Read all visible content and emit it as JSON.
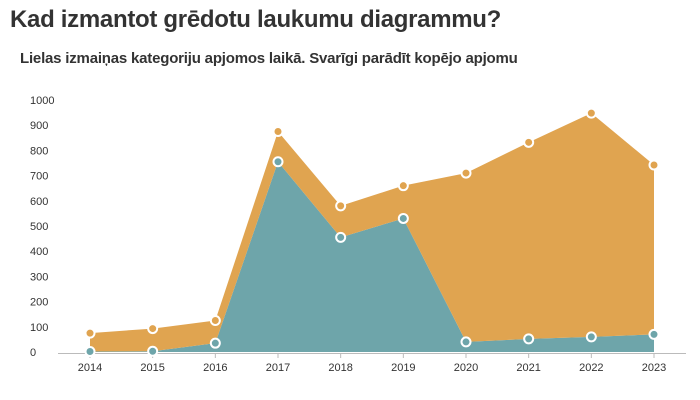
{
  "title": "Kad izmantot grēdotu laukumu diagrammu?",
  "subtitle": "Lielas izmaiņas kategoriju apjomos laikā. Svarīgi parādīt kopējo apjomu",
  "chart_data": {
    "type": "area",
    "stacked": true,
    "x": [
      2014,
      2015,
      2016,
      2017,
      2018,
      2019,
      2020,
      2021,
      2022,
      2023
    ],
    "series": [
      {
        "values": [
          2,
          3,
          35,
          755,
          455,
          530,
          40,
          52,
          60,
          70
        ],
        "color": "#6ea5aa"
      },
      {
        "values": [
          73,
          90,
          90,
          120,
          125,
          130,
          670,
          780,
          888,
          672
        ],
        "color": "#e0a450"
      }
    ],
    "y_ticks": [
      0,
      100,
      200,
      300,
      400,
      500,
      600,
      700,
      800,
      900,
      1000
    ],
    "ylim": [
      0,
      1000
    ],
    "grid": false,
    "legend": "none"
  }
}
